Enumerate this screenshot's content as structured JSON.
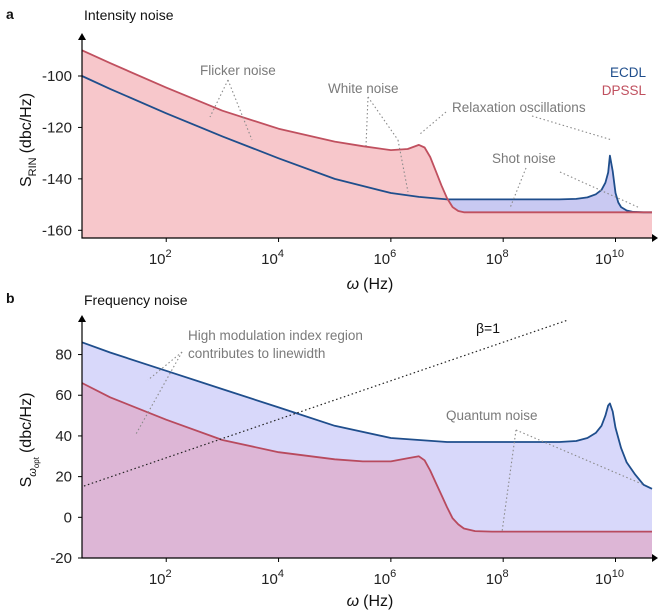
{
  "chart_data": [
    {
      "panel": "a",
      "title": "Intensity noise",
      "type": "area",
      "xlabel_symbol": "ω",
      "xlabel_unit": "(Hz)",
      "ylabel_main": "S",
      "ylabel_sub": "RIN",
      "ylabel_unit": "(dbc/Hz)",
      "xscale": "log",
      "xlim_log10": [
        0.5,
        10.65
      ],
      "ylim": [
        -163,
        -86
      ],
      "x_tick_exponents": [
        "2",
        "4",
        "6",
        "8",
        "10"
      ],
      "x_tick_base": "10",
      "y_ticks": [
        "-100",
        "-120",
        "-140",
        "-160"
      ],
      "legend": [
        "ECDL",
        "DPSSL"
      ],
      "legend_placement": "top-right",
      "series": [
        {
          "name": "ECDL",
          "color": "#1f4e8c",
          "fill": "#c9c9f2",
          "log10_x": [
            0.5,
            1,
            2,
            3,
            4,
            5,
            6,
            6.5,
            7,
            7.5,
            8,
            8.5,
            9,
            9.3,
            9.5,
            9.65,
            9.75,
            9.82,
            9.87,
            9.9,
            9.95,
            10.0,
            10.05,
            10.1,
            10.2,
            10.3,
            10.5,
            10.65
          ],
          "y": [
            -100,
            -105,
            -114.5,
            -123.5,
            -132,
            -140,
            -145.5,
            -147,
            -148,
            -148,
            -148,
            -148,
            -148,
            -147.8,
            -147.2,
            -146,
            -144.3,
            -141.5,
            -137.5,
            -131,
            -137,
            -145.5,
            -149.2,
            -151,
            -152.3,
            -152.8,
            -153,
            -153
          ]
        },
        {
          "name": "DPSSL",
          "color": "#c0505f",
          "fill": "#f7c7cb",
          "log10_x": [
            0.5,
            1,
            2,
            3,
            4,
            5,
            5.5,
            6,
            6.3,
            6.5,
            6.6,
            6.7,
            6.8,
            6.9,
            7.0,
            7.1,
            7.2,
            7.3,
            7.5,
            8,
            9,
            10,
            10.65
          ],
          "y": [
            -90,
            -95,
            -104.5,
            -113.5,
            -120.5,
            -125.5,
            -127.3,
            -128.8,
            -128.4,
            -126.8,
            -127.8,
            -131.5,
            -137,
            -142.5,
            -147.5,
            -151,
            -152.5,
            -153,
            -153,
            -153,
            -153,
            -153,
            -153
          ]
        }
      ],
      "annotations": [
        "Flicker noise",
        "White noise",
        "Relaxation oscillations",
        "Shot noise"
      ]
    },
    {
      "panel": "b",
      "title": "Frequency noise",
      "type": "area",
      "xlabel_symbol": "ω",
      "xlabel_unit": "(Hz)",
      "ylabel_main": "S",
      "ylabel_sub": "ω",
      "ylabel_subsub": "opt",
      "ylabel_unit": "(dbc/Hz)",
      "xscale": "log",
      "xlim_log10": [
        0.5,
        10.65
      ],
      "ylim": [
        -20,
        96
      ],
      "x_tick_exponents": [
        "2",
        "4",
        "6",
        "8",
        "10"
      ],
      "x_tick_base": "10",
      "y_ticks": [
        "80",
        "60",
        "40",
        "20",
        "0",
        "-20"
      ],
      "series": [
        {
          "name": "ECDL",
          "color": "#1f4e8c",
          "fill": "#d8d8fa",
          "log10_x": [
            0.5,
            1,
            2,
            3,
            4,
            5,
            6,
            7,
            8,
            9,
            9.3,
            9.5,
            9.65,
            9.75,
            9.82,
            9.87,
            9.9,
            9.95,
            10.0,
            10.1,
            10.2,
            10.35,
            10.5,
            10.65
          ],
          "y": [
            86,
            81,
            72,
            63,
            54,
            45,
            39,
            37,
            37,
            37,
            37.5,
            39,
            41.5,
            45,
            50,
            55,
            56,
            52,
            44,
            34,
            27,
            21,
            16,
            14
          ]
        },
        {
          "name": "DPSSL",
          "color": "#b84a5e",
          "fill": "#ddb6d6",
          "log10_x": [
            0.5,
            1,
            2,
            3,
            4,
            5,
            5.5,
            6,
            6.3,
            6.5,
            6.6,
            6.7,
            6.8,
            6.9,
            7.0,
            7.1,
            7.2,
            7.3,
            7.5,
            7.8,
            8,
            9,
            10,
            10.65
          ],
          "y": [
            66,
            59,
            48,
            38,
            32,
            28.5,
            27.5,
            27.5,
            29,
            30,
            28,
            23,
            17,
            11,
            5,
            -0.5,
            -3.5,
            -5.5,
            -6.8,
            -7,
            -7,
            -7,
            -7,
            -7
          ]
        }
      ],
      "reference_line": {
        "label": "β=1"
      },
      "annotations": [
        "High modulation index region",
        "contributes to linewidth",
        "Quantum noise"
      ]
    }
  ],
  "panel_labels": [
    "a",
    "b"
  ]
}
